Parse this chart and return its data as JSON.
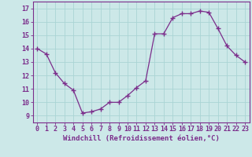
{
  "x": [
    0,
    1,
    2,
    3,
    4,
    5,
    6,
    7,
    8,
    9,
    10,
    11,
    12,
    13,
    14,
    15,
    16,
    17,
    18,
    19,
    20,
    21,
    22,
    23
  ],
  "y": [
    14.0,
    13.6,
    12.2,
    11.4,
    10.9,
    9.2,
    9.3,
    9.5,
    10.0,
    10.0,
    10.5,
    11.1,
    11.6,
    15.1,
    15.1,
    16.3,
    16.6,
    16.6,
    16.8,
    16.7,
    15.5,
    14.2,
    13.5,
    13.0
  ],
  "line_color": "#7b2d8b",
  "marker": "+",
  "marker_size": 4,
  "bg_color": "#cce8e8",
  "grid_color": "#aad4d4",
  "xlabel": "Windchill (Refroidissement éolien,°C)",
  "ylim": [
    8.5,
    17.5
  ],
  "xlim": [
    -0.5,
    23.5
  ],
  "yticks": [
    9,
    10,
    11,
    12,
    13,
    14,
    15,
    16,
    17
  ],
  "xticks": [
    0,
    1,
    2,
    3,
    4,
    5,
    6,
    7,
    8,
    9,
    10,
    11,
    12,
    13,
    14,
    15,
    16,
    17,
    18,
    19,
    20,
    21,
    22,
    23
  ],
  "xtick_labels": [
    "0",
    "1",
    "2",
    "3",
    "4",
    "5",
    "6",
    "7",
    "8",
    "9",
    "10",
    "11",
    "12",
    "13",
    "14",
    "15",
    "16",
    "17",
    "18",
    "19",
    "20",
    "21",
    "22",
    "23"
  ],
  "tick_color": "#7b2d8b",
  "label_fontsize": 6.5,
  "tick_fontsize": 6.0,
  "spine_color": "#7b2d8b"
}
